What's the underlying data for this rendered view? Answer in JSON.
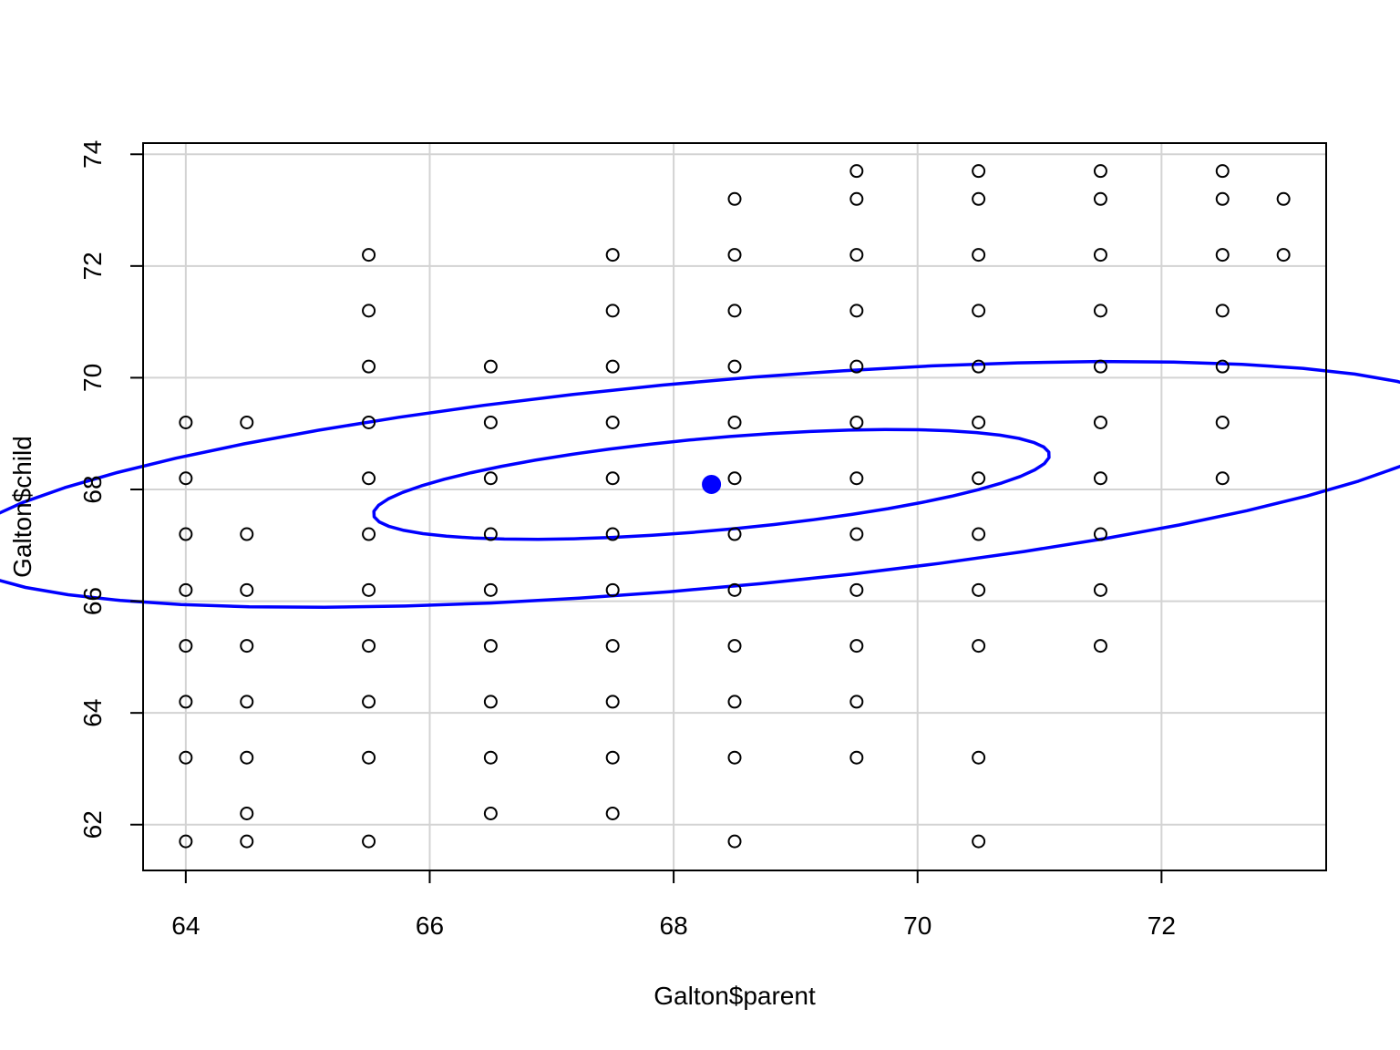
{
  "chart_data": {
    "type": "scatter",
    "title": "",
    "xlabel": "Galton$parent",
    "ylabel": "Galton$child",
    "xlim": [
      63.65,
      73.35
    ],
    "ylim": [
      61.18,
      74.2
    ],
    "xticks": [
      64,
      66,
      68,
      70,
      72
    ],
    "yticks": [
      62,
      64,
      66,
      68,
      70,
      72,
      74
    ],
    "grid": true,
    "point_color": "#000000",
    "ellipse_color": "#0000FF",
    "grid_color": "#D3D3D3",
    "points": [
      [
        64.0,
        61.7
      ],
      [
        64.0,
        63.2
      ],
      [
        64.0,
        64.2
      ],
      [
        64.0,
        65.2
      ],
      [
        64.0,
        66.2
      ],
      [
        64.0,
        67.2
      ],
      [
        64.0,
        68.2
      ],
      [
        64.0,
        69.2
      ],
      [
        64.5,
        61.7
      ],
      [
        64.5,
        62.2
      ],
      [
        64.5,
        63.2
      ],
      [
        64.5,
        64.2
      ],
      [
        64.5,
        65.2
      ],
      [
        64.5,
        66.2
      ],
      [
        64.5,
        67.2
      ],
      [
        64.5,
        69.2
      ],
      [
        65.5,
        61.7
      ],
      [
        65.5,
        63.2
      ],
      [
        65.5,
        64.2
      ],
      [
        65.5,
        65.2
      ],
      [
        65.5,
        66.2
      ],
      [
        65.5,
        67.2
      ],
      [
        65.5,
        68.2
      ],
      [
        65.5,
        69.2
      ],
      [
        65.5,
        70.2
      ],
      [
        65.5,
        71.2
      ],
      [
        65.5,
        72.2
      ],
      [
        66.5,
        62.2
      ],
      [
        66.5,
        63.2
      ],
      [
        66.5,
        64.2
      ],
      [
        66.5,
        65.2
      ],
      [
        66.5,
        66.2
      ],
      [
        66.5,
        67.2
      ],
      [
        66.5,
        68.2
      ],
      [
        66.5,
        69.2
      ],
      [
        66.5,
        70.2
      ],
      [
        67.5,
        62.2
      ],
      [
        67.5,
        63.2
      ],
      [
        67.5,
        64.2
      ],
      [
        67.5,
        65.2
      ],
      [
        67.5,
        66.2
      ],
      [
        67.5,
        67.2
      ],
      [
        67.5,
        68.2
      ],
      [
        67.5,
        69.2
      ],
      [
        67.5,
        70.2
      ],
      [
        67.5,
        71.2
      ],
      [
        67.5,
        72.2
      ],
      [
        68.5,
        61.7
      ],
      [
        68.5,
        63.2
      ],
      [
        68.5,
        64.2
      ],
      [
        68.5,
        65.2
      ],
      [
        68.5,
        66.2
      ],
      [
        68.5,
        67.2
      ],
      [
        68.5,
        68.2
      ],
      [
        68.5,
        69.2
      ],
      [
        68.5,
        70.2
      ],
      [
        68.5,
        71.2
      ],
      [
        68.5,
        72.2
      ],
      [
        68.5,
        73.2
      ],
      [
        69.5,
        63.2
      ],
      [
        69.5,
        64.2
      ],
      [
        69.5,
        65.2
      ],
      [
        69.5,
        66.2
      ],
      [
        69.5,
        67.2
      ],
      [
        69.5,
        68.2
      ],
      [
        69.5,
        69.2
      ],
      [
        69.5,
        70.2
      ],
      [
        69.5,
        71.2
      ],
      [
        69.5,
        72.2
      ],
      [
        69.5,
        73.2
      ],
      [
        69.5,
        73.7
      ],
      [
        70.5,
        61.7
      ],
      [
        70.5,
        63.2
      ],
      [
        70.5,
        65.2
      ],
      [
        70.5,
        66.2
      ],
      [
        70.5,
        67.2
      ],
      [
        70.5,
        68.2
      ],
      [
        70.5,
        69.2
      ],
      [
        70.5,
        70.2
      ],
      [
        70.5,
        71.2
      ],
      [
        70.5,
        72.2
      ],
      [
        70.5,
        73.2
      ],
      [
        70.5,
        73.7
      ],
      [
        71.5,
        65.2
      ],
      [
        71.5,
        66.2
      ],
      [
        71.5,
        67.2
      ],
      [
        71.5,
        68.2
      ],
      [
        71.5,
        69.2
      ],
      [
        71.5,
        70.2
      ],
      [
        71.5,
        71.2
      ],
      [
        71.5,
        72.2
      ],
      [
        71.5,
        73.2
      ],
      [
        71.5,
        73.7
      ],
      [
        72.5,
        68.2
      ],
      [
        72.5,
        69.2
      ],
      [
        72.5,
        70.2
      ],
      [
        72.5,
        71.2
      ],
      [
        72.5,
        72.2
      ],
      [
        72.5,
        73.2
      ],
      [
        72.5,
        73.7
      ],
      [
        73.0,
        72.2
      ],
      [
        73.0,
        73.2
      ]
    ],
    "center": [
      68.31,
      68.09
    ],
    "ellipses": [
      {
        "name": "inner",
        "cx": 68.31,
        "cy": 68.09,
        "vx": [
          1.97,
          1.95
        ],
        "vy": [
          -0.21,
          0.96
        ]
      },
      {
        "name": "outer",
        "cx": 68.31,
        "cy": 68.09,
        "vx": [
          4.39,
          4.35
        ],
        "vy": [
          -0.47,
          2.15
        ]
      }
    ]
  }
}
